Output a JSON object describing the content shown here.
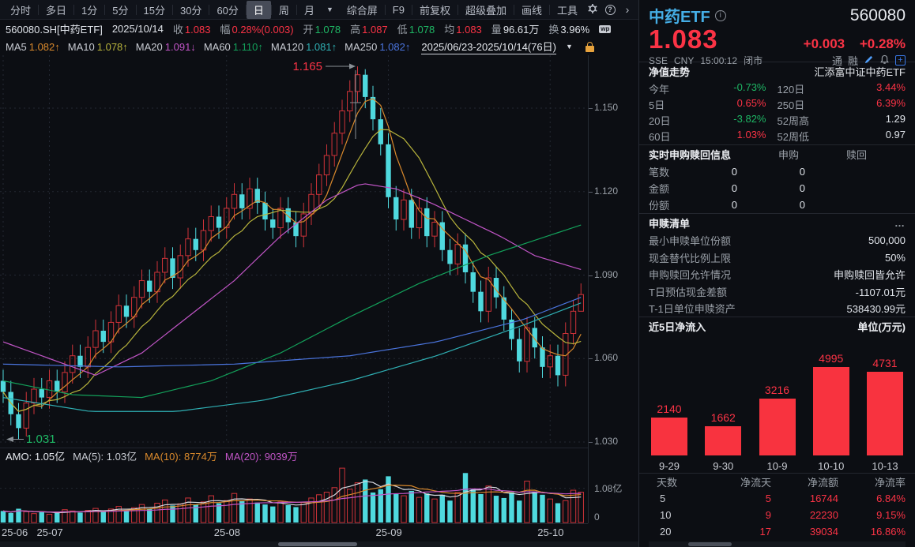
{
  "colors": {
    "red": "#fb3345",
    "green": "#1eb664",
    "white": "#dfe3e9",
    "gray": "#9aa0a8",
    "up_candle": "#cf3339",
    "down_candle": "#4fd9de",
    "bar_red": "#f8333f",
    "title_blue": "#45aee6",
    "ma5": "#d9892c",
    "ma10": "#b8b43c",
    "ma20": "#c155c6",
    "ma60": "#13a05a",
    "ma120": "#2fb0b4",
    "ma250": "#4a74dd",
    "vol_ma5": "#d8dbe2"
  },
  "toolbar": {
    "tabs": [
      "分时",
      "多日",
      "1分",
      "5分",
      "15分",
      "30分",
      "60分",
      "日",
      "周",
      "月"
    ],
    "active_tab": "日",
    "dropdown_caret": "▼",
    "right_items": [
      "综合屏",
      "F9",
      "前复权",
      "超级叠加",
      "画线",
      "工具"
    ],
    "help_icon": "?",
    "chevron_icon": "›"
  },
  "info_bar": {
    "symbol": "560080.SH[中药ETF]",
    "date": "2025/10/14",
    "fields": [
      {
        "label": "收",
        "value": "1.083",
        "color": "red"
      },
      {
        "label": "幅",
        "value": "0.28%(0.003)",
        "color": "red"
      },
      {
        "label": "开",
        "value": "1.078",
        "color": "green"
      },
      {
        "label": "高",
        "value": "1.087",
        "color": "red"
      },
      {
        "label": "低",
        "value": "1.078",
        "color": "green"
      },
      {
        "label": "均",
        "value": "1.083",
        "color": "red"
      },
      {
        "label": "量",
        "value": "96.61万",
        "color": "white"
      },
      {
        "label": "换",
        "value": "3.96%",
        "color": "white"
      }
    ],
    "wp_badge": "wp"
  },
  "ma_bar": {
    "items": [
      {
        "label": "MA5",
        "value": "1.082",
        "arrow": "↑",
        "color": "#d9892c"
      },
      {
        "label": "MA10",
        "value": "1.078",
        "arrow": "↑",
        "color": "#b8b43c"
      },
      {
        "label": "MA20",
        "value": "1.091",
        "arrow": "↓",
        "color": "#c155c6"
      },
      {
        "label": "MA60",
        "value": "1.110",
        "arrow": "↑",
        "color": "#13a05a"
      },
      {
        "label": "MA120",
        "value": "1.081",
        "arrow": "↑",
        "color": "#2fb0b4"
      },
      {
        "label": "MA250",
        "value": "1.082",
        "arrow": "↑",
        "color": "#4a74dd"
      }
    ],
    "range": "2025/06/23-2025/10/14(76日)",
    "caret": "▼"
  },
  "amo_bar": {
    "items": [
      {
        "label": "AMO:",
        "value": "1.05亿",
        "color": "#e6e9ee"
      },
      {
        "label": "MA(5):",
        "value": "1.03亿",
        "color": "#c9ccd3"
      },
      {
        "label": "MA(10):",
        "value": "8774万",
        "color": "#d9892c"
      },
      {
        "label": "MA(20):",
        "value": "9039万",
        "color": "#c155c6"
      }
    ]
  },
  "vol_axis": {
    "top": "1.08亿",
    "bottom": "0",
    "top_value": 1.08,
    "max": 1.8
  },
  "chart_data": [
    {
      "type": "candlestick",
      "title": "560080.SH 中药ETF 日K 2025/06/23-2025/10/14",
      "y_ticks": [
        1.15,
        1.12,
        1.09,
        1.06,
        1.03
      ],
      "ylim": [
        1.028,
        1.168
      ],
      "high_annotation": "1.165",
      "low_annotation": "1.031",
      "x_labels": [
        "25-06",
        "25-07",
        "25-08",
        "25-09",
        "25-10"
      ],
      "month_start_indices": [
        0,
        6,
        29,
        50,
        71
      ],
      "legend": [
        "MA5",
        "MA10",
        "MA20",
        "MA60",
        "MA120",
        "MA250"
      ],
      "candles": [
        [
          1.052,
          1.056,
          1.044,
          1.048
        ],
        [
          1.048,
          1.052,
          1.036,
          1.04
        ],
        [
          1.04,
          1.044,
          1.031,
          1.035
        ],
        [
          1.035,
          1.048,
          1.032,
          1.044
        ],
        [
          1.044,
          1.053,
          1.04,
          1.049
        ],
        [
          1.049,
          1.053,
          1.042,
          1.046
        ],
        [
          1.046,
          1.056,
          1.042,
          1.052
        ],
        [
          1.052,
          1.056,
          1.044,
          1.048
        ],
        [
          1.048,
          1.059,
          1.044,
          1.055
        ],
        [
          1.055,
          1.065,
          1.051,
          1.061
        ],
        [
          1.061,
          1.065,
          1.053,
          1.057
        ],
        [
          1.057,
          1.068,
          1.053,
          1.064
        ],
        [
          1.064,
          1.074,
          1.06,
          1.07
        ],
        [
          1.07,
          1.074,
          1.062,
          1.066
        ],
        [
          1.066,
          1.077,
          1.062,
          1.073
        ],
        [
          1.073,
          1.083,
          1.069,
          1.079
        ],
        [
          1.079,
          1.083,
          1.071,
          1.075
        ],
        [
          1.075,
          1.086,
          1.071,
          1.082
        ],
        [
          1.082,
          1.092,
          1.078,
          1.088
        ],
        [
          1.088,
          1.092,
          1.08,
          1.084
        ],
        [
          1.084,
          1.095,
          1.08,
          1.091
        ],
        [
          1.091,
          1.1,
          1.087,
          1.096
        ],
        [
          1.096,
          1.1,
          1.085,
          1.089
        ],
        [
          1.089,
          1.101,
          1.085,
          1.097
        ],
        [
          1.097,
          1.107,
          1.093,
          1.103
        ],
        [
          1.103,
          1.107,
          1.095,
          1.099
        ],
        [
          1.099,
          1.11,
          1.095,
          1.106
        ],
        [
          1.106,
          1.115,
          1.102,
          1.111
        ],
        [
          1.111,
          1.115,
          1.103,
          1.107
        ],
        [
          1.107,
          1.118,
          1.103,
          1.114
        ],
        [
          1.114,
          1.123,
          1.11,
          1.119
        ],
        [
          1.119,
          1.123,
          1.11,
          1.114
        ],
        [
          1.114,
          1.125,
          1.11,
          1.121
        ],
        [
          1.121,
          1.125,
          1.112,
          1.116
        ],
        [
          1.116,
          1.12,
          1.106,
          1.11
        ],
        [
          1.11,
          1.114,
          1.103,
          1.107
        ],
        [
          1.107,
          1.118,
          1.103,
          1.114
        ],
        [
          1.114,
          1.118,
          1.105,
          1.109
        ],
        [
          1.109,
          1.113,
          1.1,
          1.104
        ],
        [
          1.104,
          1.116,
          1.1,
          1.112
        ],
        [
          1.112,
          1.123,
          1.108,
          1.119
        ],
        [
          1.119,
          1.13,
          1.115,
          1.126
        ],
        [
          1.126,
          1.137,
          1.122,
          1.133
        ],
        [
          1.133,
          1.145,
          1.129,
          1.141
        ],
        [
          1.141,
          1.153,
          1.137,
          1.149
        ],
        [
          1.149,
          1.16,
          1.145,
          1.156
        ],
        [
          1.156,
          1.165,
          1.152,
          1.162
        ],
        [
          1.162,
          1.164,
          1.15,
          1.154
        ],
        [
          1.154,
          1.158,
          1.142,
          1.146
        ],
        [
          1.146,
          1.15,
          1.133,
          1.137
        ],
        [
          1.137,
          1.141,
          1.114,
          1.118
        ],
        [
          1.118,
          1.122,
          1.106,
          1.11
        ],
        [
          1.11,
          1.121,
          1.106,
          1.117
        ],
        [
          1.117,
          1.121,
          1.103,
          1.107
        ],
        [
          1.107,
          1.118,
          1.103,
          1.114
        ],
        [
          1.114,
          1.118,
          1.1,
          1.104
        ],
        [
          1.104,
          1.113,
          1.1,
          1.109
        ],
        [
          1.109,
          1.113,
          1.095,
          1.099
        ],
        [
          1.099,
          1.103,
          1.09,
          1.094
        ],
        [
          1.094,
          1.105,
          1.09,
          1.101
        ],
        [
          1.101,
          1.105,
          1.087,
          1.091
        ],
        [
          1.091,
          1.095,
          1.08,
          1.084
        ],
        [
          1.084,
          1.088,
          1.073,
          1.077
        ],
        [
          1.077,
          1.093,
          1.073,
          1.089
        ],
        [
          1.089,
          1.093,
          1.078,
          1.082
        ],
        [
          1.082,
          1.086,
          1.07,
          1.074
        ],
        [
          1.074,
          1.078,
          1.063,
          1.067
        ],
        [
          1.067,
          1.071,
          1.055,
          1.059
        ],
        [
          1.059,
          1.075,
          1.055,
          1.071
        ],
        [
          1.071,
          1.075,
          1.06,
          1.064
        ],
        [
          1.064,
          1.068,
          1.053,
          1.057
        ],
        [
          1.057,
          1.065,
          1.053,
          1.061
        ],
        [
          1.061,
          1.065,
          1.05,
          1.054
        ],
        [
          1.054,
          1.073,
          1.05,
          1.069
        ],
        [
          1.069,
          1.081,
          1.065,
          1.077
        ],
        [
          1.077,
          1.087,
          1.077,
          1.083
        ]
      ],
      "volumes": [
        0.38,
        0.32,
        0.45,
        0.36,
        0.3,
        0.34,
        0.28,
        0.35,
        0.42,
        0.38,
        0.33,
        0.4,
        0.46,
        0.36,
        0.44,
        0.52,
        0.4,
        0.48,
        0.58,
        0.45,
        0.62,
        0.72,
        0.55,
        0.6,
        0.78,
        0.58,
        0.66,
        0.85,
        0.62,
        0.7,
        0.92,
        0.68,
        0.75,
        0.64,
        0.58,
        0.52,
        0.66,
        0.56,
        0.5,
        0.64,
        0.78,
        0.88,
        0.96,
        1.1,
        1.7,
        1.05,
        1.25,
        1.35,
        0.95,
        1.05,
        1.45,
        0.9,
        0.85,
        1.0,
        0.8,
        0.92,
        0.75,
        0.88,
        0.7,
        0.95,
        1.55,
        1.05,
        0.9,
        1.15,
        0.85,
        0.78,
        0.95,
        0.7,
        1.3,
        0.98,
        0.88,
        0.75,
        0.62,
        0.7,
        1.02,
        0.96
      ],
      "ma_guides": {
        "ma20": [
          [
            0,
            1.066
          ],
          [
            8,
            1.06
          ],
          [
            16,
            1.054
          ],
          [
            24,
            1.062
          ],
          [
            32,
            1.075
          ],
          [
            40,
            1.088
          ],
          [
            48,
            1.104
          ],
          [
            56,
            1.117
          ],
          [
            62,
            1.123
          ],
          [
            68,
            1.121
          ],
          [
            74,
            1.116
          ],
          [
            80,
            1.11
          ],
          [
            86,
            1.104
          ],
          [
            92,
            1.097
          ],
          [
            100,
            1.092
          ]
        ],
        "ma60": [
          [
            0,
            1.052
          ],
          [
            12,
            1.047
          ],
          [
            24,
            1.046
          ],
          [
            36,
            1.052
          ],
          [
            48,
            1.062
          ],
          [
            60,
            1.075
          ],
          [
            72,
            1.087
          ],
          [
            84,
            1.097
          ],
          [
            100,
            1.108
          ]
        ],
        "ma120": [
          [
            0,
            1.046
          ],
          [
            15,
            1.041
          ],
          [
            30,
            1.041
          ],
          [
            45,
            1.045
          ],
          [
            60,
            1.052
          ],
          [
            75,
            1.061
          ],
          [
            90,
            1.072
          ],
          [
            100,
            1.08
          ]
        ],
        "ma250": [
          [
            0,
            1.058
          ],
          [
            20,
            1.057
          ],
          [
            40,
            1.058
          ],
          [
            60,
            1.061
          ],
          [
            75,
            1.066
          ],
          [
            90,
            1.074
          ],
          [
            100,
            1.082
          ]
        ]
      }
    },
    {
      "type": "bar",
      "title": "近5日净流入",
      "unit": "单位(万元)",
      "categories": [
        "9-29",
        "9-30",
        "10-9",
        "10-10",
        "10-13"
      ],
      "values": [
        2140,
        1662,
        3216,
        4995,
        4731
      ],
      "ylim": [
        0,
        5000
      ]
    }
  ],
  "quote": {
    "name": "中药ETF",
    "code": "560080",
    "price": "1.083",
    "change": "+0.003",
    "change_pct": "+0.28%",
    "exchange": "SSE",
    "currency": "CNY",
    "time": "15:00:12",
    "status": "闭市",
    "badges": [
      "通",
      "融"
    ]
  },
  "nav": {
    "title": "净值走势",
    "fund_name": "汇添富中证中药ETF",
    "rows": [
      {
        "l1": "今年",
        "v1": "-0.73%",
        "c1": "green",
        "l2": "120日",
        "v2": "3.44%",
        "c2": "red"
      },
      {
        "l1": "5日",
        "v1": "0.65%",
        "c1": "red",
        "l2": "250日",
        "v2": "6.39%",
        "c2": "red"
      },
      {
        "l1": "20日",
        "v1": "-3.82%",
        "c1": "green",
        "l2": "52周高",
        "v2": "1.29",
        "c2": "white"
      },
      {
        "l1": "60日",
        "v1": "1.03%",
        "c1": "red",
        "l2": "52周低",
        "v2": "0.97",
        "c2": "white"
      }
    ]
  },
  "subscription": {
    "title": "实时申购赎回信息",
    "col1": "申购",
    "col2": "赎回",
    "rows": [
      {
        "label": "笔数",
        "buy": "0",
        "sell": "0"
      },
      {
        "label": "金额",
        "buy": "0",
        "sell": "0"
      },
      {
        "label": "份额",
        "buy": "0",
        "sell": "0"
      }
    ]
  },
  "redemption": {
    "title": "申赎清单",
    "more": "…",
    "rows": [
      {
        "label": "最小申赎单位份额",
        "value": "500,000"
      },
      {
        "label": "现金替代比例上限",
        "value": "50%"
      },
      {
        "label": "申购赎回允许情况",
        "value": "申购赎回皆允许"
      },
      {
        "label": "T日预估现金差额",
        "value": "-1107.01元"
      },
      {
        "label": "T-1日单位申赎资产",
        "value": "538430.99元"
      }
    ]
  },
  "netflow": {
    "title": "近5日净流入",
    "unit": "单位(万元)"
  },
  "flow_table": {
    "headers": [
      "天数",
      "净流天",
      "净流额",
      "净流率"
    ],
    "rows": [
      [
        "5",
        "5",
        "16744",
        "6.84%"
      ],
      [
        "10",
        "9",
        "22230",
        "9.15%"
      ],
      [
        "20",
        "17",
        "39034",
        "16.86%"
      ]
    ]
  }
}
